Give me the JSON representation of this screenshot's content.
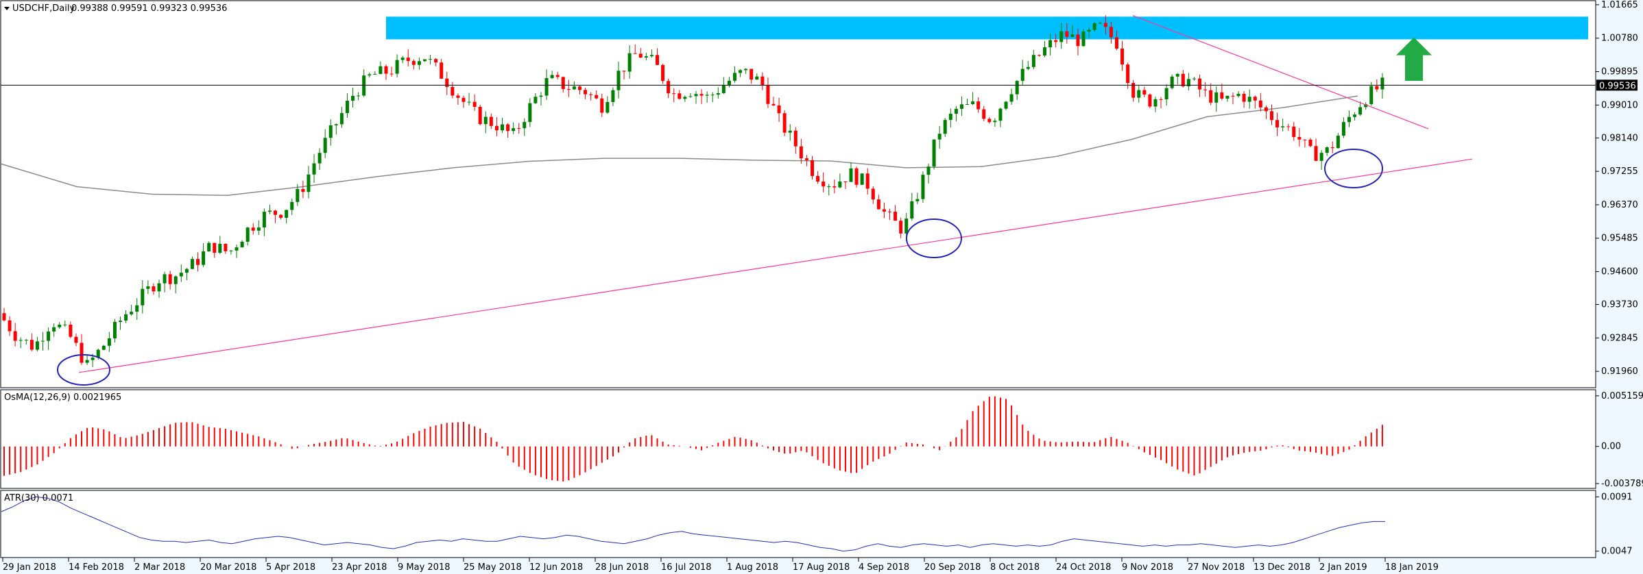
{
  "header": {
    "symbol": "USDCHF,Daily",
    "ohlc": "0.99388 0.99591 0.99323 0.99536",
    "osma_label": "OsMA(12,26,9) 0.0021965",
    "atr_label": "ATR(30) 0.0071"
  },
  "colors": {
    "background": "#f0f8ff",
    "bull": "#008000",
    "bear": "#ff0000",
    "ma": "#8a8a8a",
    "trendline": "#ff3399",
    "zone": "#00bfff",
    "circle": "#2222bb",
    "arrow": "#22aa44",
    "atr": "#1f2fbf"
  },
  "chart_data": [
    {
      "type": "candlestick",
      "title": "USDCHF,Daily",
      "y_ticks": [
        "1.01665",
        "1.00780",
        "0.99895",
        "0.99010",
        "0.98140",
        "0.97255",
        "0.96370",
        "0.95485",
        "0.94600",
        "0.93730",
        "0.92845",
        "0.91960"
      ],
      "ylim": [
        0.916,
        1.017
      ],
      "current_price": "0.99536",
      "x_ticks": [
        "29 Jan 2018",
        "14 Feb 2018",
        "2 Mar 2018",
        "20 Mar 2018",
        "5 Apr 2018",
        "23 Apr 2018",
        "9 May 2018",
        "25 May 2018",
        "12 Jun 2018",
        "28 Jun 2018",
        "16 Jul 2018",
        "1 Aug 2018",
        "17 Aug 2018",
        "4 Sep 2018",
        "20 Sep 2018",
        "8 Oct 2018",
        "24 Oct 2018",
        "9 Nov 2018",
        "27 Nov 2018",
        "13 Dec 2018",
        "2 Jan 2019",
        "18 Jan 2019"
      ],
      "price_path": [
        0.935,
        0.929,
        0.926,
        0.933,
        0.929,
        0.921,
        0.927,
        0.934,
        0.939,
        0.944,
        0.945,
        0.948,
        0.953,
        0.951,
        0.957,
        0.961,
        0.962,
        0.967,
        0.977,
        0.985,
        0.993,
        0.998,
        0.999,
        1.002,
        1.003,
        0.998,
        0.992,
        0.987,
        0.985,
        0.982,
        0.99,
        0.997,
        0.995,
        0.994,
        0.99,
        0.999,
        1.004,
        1.001,
        0.993,
        0.994,
        0.992,
        0.996,
        0.999,
        0.996,
        0.986,
        0.979,
        0.972,
        0.969,
        0.972,
        0.969,
        0.961,
        0.957,
        0.969,
        0.983,
        0.989,
        0.99,
        0.986,
        0.994,
        1.0,
        1.005,
        1.009,
        1.007,
        1.011,
        1.007,
        0.993,
        0.991,
        0.996,
        0.997,
        0.993,
        0.991,
        0.993,
        0.99,
        0.986,
        0.983,
        0.977,
        0.978,
        0.986,
        0.992,
        0.9954
      ],
      "ma_path": [
        0.9745,
        0.9685,
        0.9665,
        0.9662,
        0.9685,
        0.9712,
        0.9735,
        0.9752,
        0.976,
        0.976,
        0.9755,
        0.9753,
        0.9735,
        0.9738,
        0.9765,
        0.981,
        0.987,
        0.9894,
        0.9925
      ],
      "osma": [
        -0.003,
        -0.0026,
        -0.0018,
        -0.0006,
        0.001,
        0.002,
        0.0017,
        0.0008,
        0.0012,
        0.0018,
        0.0024,
        0.0025,
        0.002,
        0.0018,
        0.0014,
        0.001,
        0.0004,
        -0.0003,
        0.0002,
        0.0005,
        0.0009,
        0.0004,
        0.0,
        0.0004,
        0.0013,
        0.002,
        0.0024,
        0.0025,
        0.0018,
        0.0004,
        -0.0018,
        -0.0028,
        -0.0034,
        -0.0036,
        -0.0028,
        -0.0018,
        -0.0008,
        0.0008,
        0.0012,
        0.0002,
        0.0,
        -0.0004,
        0.0004,
        0.001,
        0.0006,
        -0.0003,
        -0.0008,
        -0.0004,
        -0.0016,
        -0.0024,
        -0.0028,
        -0.0016,
        -0.0008,
        0.0004,
        0.0002,
        -0.0004,
        0.001,
        0.0038,
        0.0052,
        0.0048,
        0.0018,
        0.0006,
        0.0004,
        0.0005,
        0.0004,
        0.001,
        0.0004,
        -0.0006,
        -0.0014,
        -0.0024,
        -0.003,
        -0.002,
        -0.001,
        -0.0006,
        -0.0004,
        0.0002,
        -0.0004,
        -0.0006,
        -0.001,
        -0.0004,
        0.001,
        0.0022
      ],
      "osma_ticks": [
        "0.0051599",
        "0.00",
        "-0.0037899"
      ],
      "osma_ylim": [
        -0.004,
        0.0055
      ],
      "atr": [
        0.0079,
        0.0083,
        0.0088,
        0.0091,
        0.009,
        0.0087,
        0.0082,
        0.0078,
        0.0074,
        0.007,
        0.0066,
        0.0062,
        0.0058,
        0.0056,
        0.0055,
        0.0055,
        0.0054,
        0.0055,
        0.0056,
        0.0054,
        0.0053,
        0.0055,
        0.0057,
        0.0058,
        0.0059,
        0.0058,
        0.0056,
        0.0054,
        0.0052,
        0.0053,
        0.0054,
        0.0053,
        0.0052,
        0.005,
        0.0049,
        0.0051,
        0.0054,
        0.0055,
        0.0056,
        0.0055,
        0.0057,
        0.0056,
        0.0055,
        0.0055,
        0.0057,
        0.0059,
        0.0058,
        0.0057,
        0.0058,
        0.006,
        0.0059,
        0.0057,
        0.0055,
        0.0054,
        0.0053,
        0.0055,
        0.0057,
        0.006,
        0.0062,
        0.0063,
        0.0061,
        0.006,
        0.0059,
        0.0058,
        0.0057,
        0.0056,
        0.0055,
        0.0054,
        0.0055,
        0.0054,
        0.0052,
        0.005,
        0.0049,
        0.0047,
        0.0048,
        0.0051,
        0.0053,
        0.0051,
        0.005,
        0.0052,
        0.0053,
        0.0052,
        0.0051,
        0.0052,
        0.005,
        0.0052,
        0.0053,
        0.0052,
        0.0051,
        0.0052,
        0.0051,
        0.0052,
        0.0055,
        0.0057,
        0.0056,
        0.0055,
        0.0054,
        0.0053,
        0.0052,
        0.0051,
        0.0052,
        0.0051,
        0.0052,
        0.0052,
        0.0053,
        0.0052,
        0.0051,
        0.005,
        0.0051,
        0.0052,
        0.0051,
        0.0052,
        0.0054,
        0.0057,
        0.006,
        0.0063,
        0.0066,
        0.0068,
        0.007,
        0.0071,
        0.0071
      ],
      "atr_ticks": [
        "0.0091",
        "0.0047"
      ],
      "atr_ylim": [
        0.0044,
        0.0094
      ]
    }
  ]
}
